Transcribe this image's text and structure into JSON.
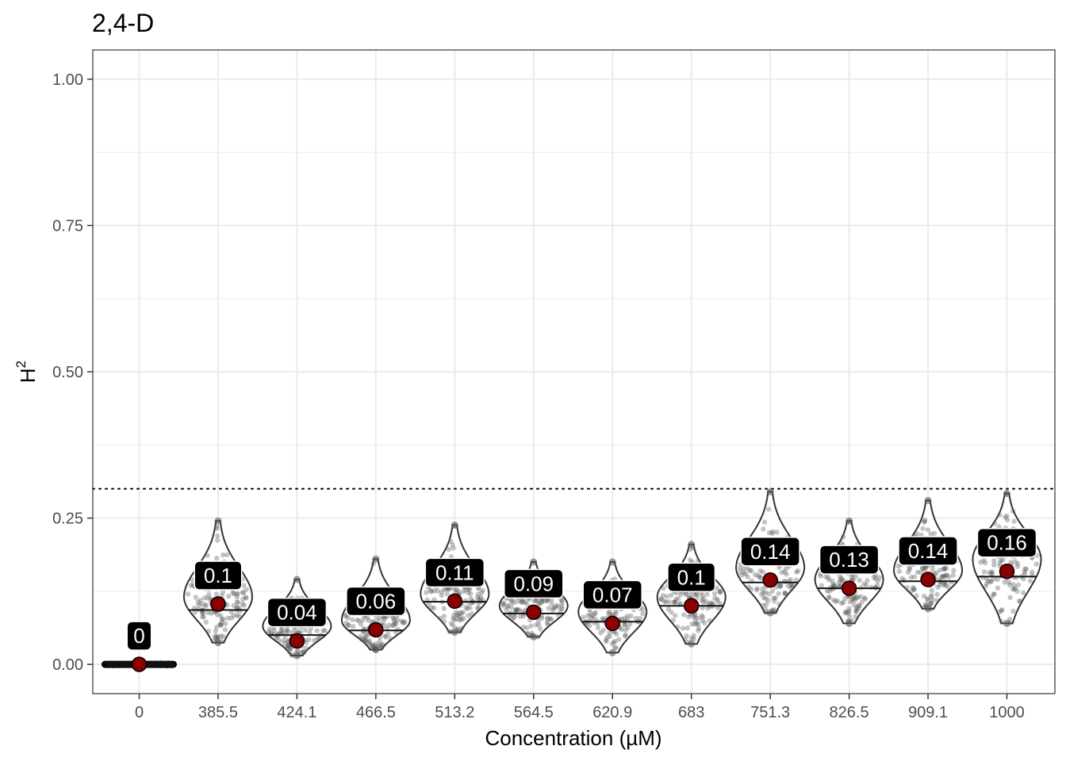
{
  "chart_data": {
    "type": "violin",
    "title": "2,4-D",
    "xlabel": "Concentration (µM)",
    "ylabel": "H",
    "ylabel_superscript": "2",
    "ylim": [
      -0.05,
      1.05
    ],
    "yticks": [
      0.0,
      0.25,
      0.5,
      0.75,
      1.0
    ],
    "ytick_labels": [
      "0.00",
      "0.25",
      "0.50",
      "0.75",
      "1.00"
    ],
    "reference_line": 0.3,
    "grid": true,
    "colors": {
      "violin_outline": "#333333",
      "points": "#555555",
      "mean_point": "#8b0000",
      "label_bg": "#000000",
      "label_text": "#ffffff",
      "grid": "#ebebeb",
      "panel_border": "#333333"
    },
    "categories": [
      "0",
      "385.5",
      "424.1",
      "466.5",
      "513.2",
      "564.5",
      "620.9",
      "683",
      "751.3",
      "826.5",
      "909.1",
      "1000"
    ],
    "series": [
      {
        "category": "0",
        "mean": 0.0,
        "median": 0.0,
        "min": 0.0,
        "max": 0.005,
        "mode": 0.0,
        "label": "0"
      },
      {
        "category": "385.5",
        "mean": 0.103,
        "median": 0.093,
        "min": 0.037,
        "max": 0.245,
        "mode": 0.115,
        "label": "0.1"
      },
      {
        "category": "424.1",
        "mean": 0.04,
        "median": 0.05,
        "min": 0.015,
        "max": 0.145,
        "mode": 0.065,
        "label": "0.04"
      },
      {
        "category": "466.5",
        "mean": 0.059,
        "median": 0.058,
        "min": 0.025,
        "max": 0.18,
        "mode": 0.075,
        "label": "0.06"
      },
      {
        "category": "513.2",
        "mean": 0.108,
        "median": 0.107,
        "min": 0.055,
        "max": 0.238,
        "mode": 0.12,
        "label": "0.11"
      },
      {
        "category": "564.5",
        "mean": 0.089,
        "median": 0.087,
        "min": 0.047,
        "max": 0.175,
        "mode": 0.1,
        "label": "0.09"
      },
      {
        "category": "620.9",
        "mean": 0.07,
        "median": 0.073,
        "min": 0.02,
        "max": 0.175,
        "mode": 0.09,
        "label": "0.07"
      },
      {
        "category": "683",
        "mean": 0.1,
        "median": 0.1,
        "min": 0.035,
        "max": 0.205,
        "mode": 0.115,
        "label": "0.1"
      },
      {
        "category": "751.3",
        "mean": 0.144,
        "median": 0.14,
        "min": 0.088,
        "max": 0.295,
        "mode": 0.165,
        "label": "0.14"
      },
      {
        "category": "826.5",
        "mean": 0.13,
        "median": 0.13,
        "min": 0.07,
        "max": 0.245,
        "mode": 0.145,
        "label": "0.13"
      },
      {
        "category": "909.1",
        "mean": 0.145,
        "median": 0.142,
        "min": 0.095,
        "max": 0.28,
        "mode": 0.16,
        "label": "0.14"
      },
      {
        "category": "1000",
        "mean": 0.159,
        "median": 0.15,
        "min": 0.07,
        "max": 0.292,
        "mode": 0.18,
        "label": "0.16"
      }
    ]
  }
}
